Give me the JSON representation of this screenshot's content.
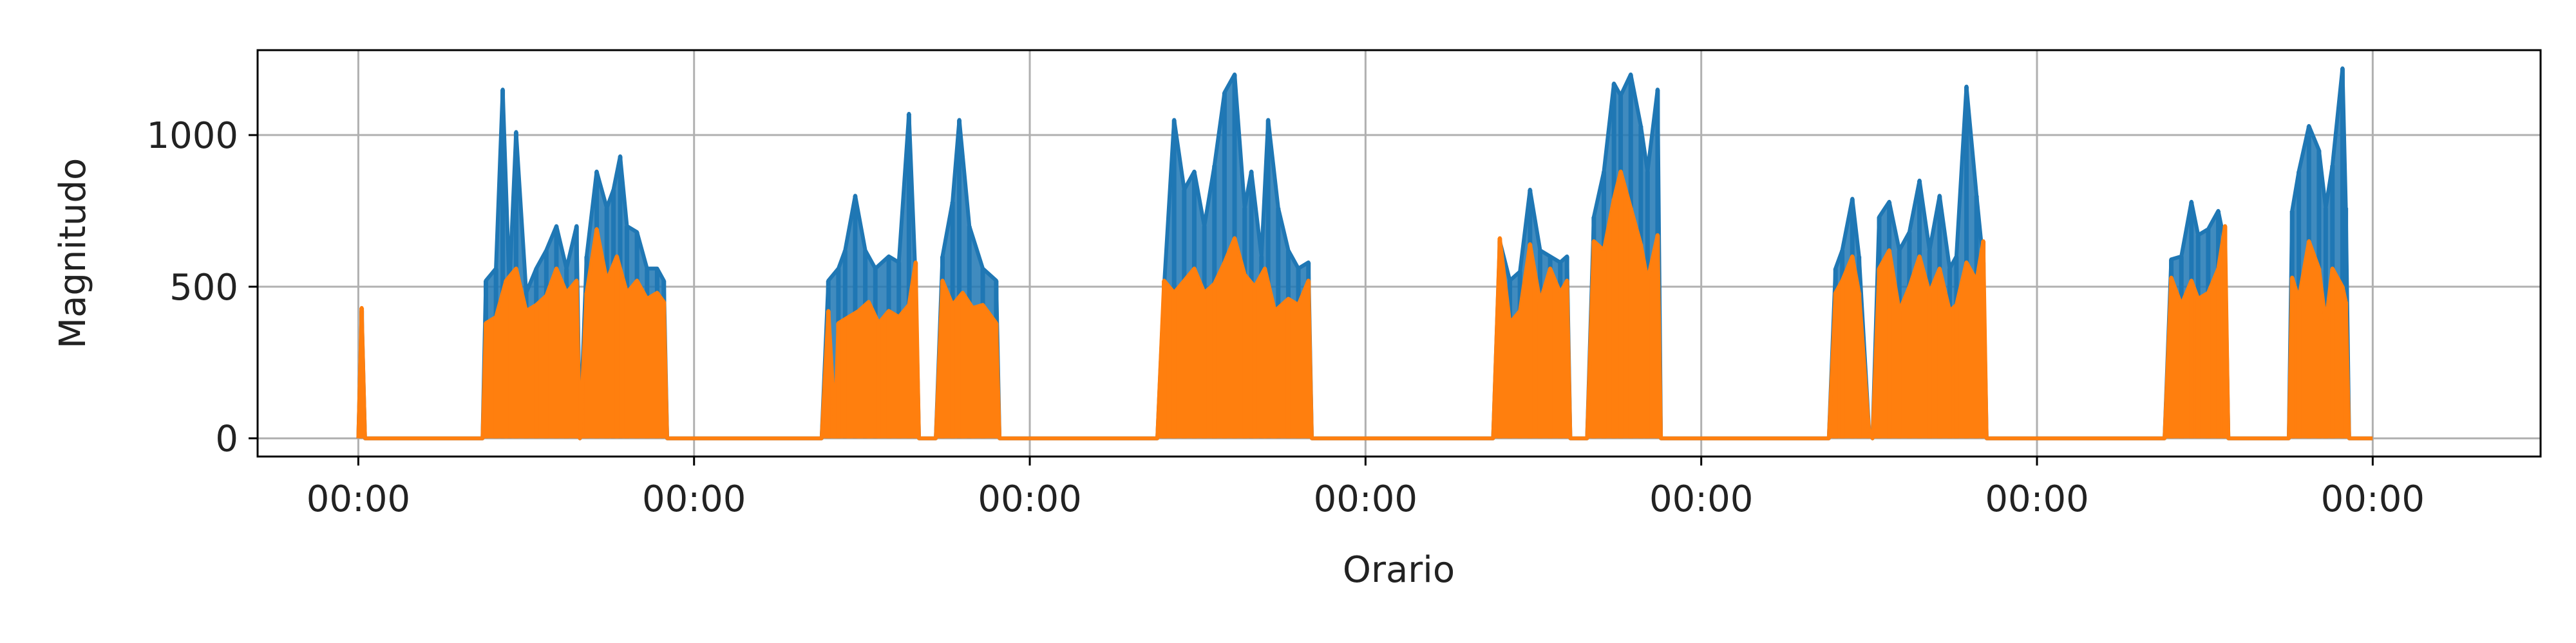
{
  "chart_data": {
    "type": "line",
    "title": "",
    "xlabel": "Orario",
    "ylabel": "Magnitudo",
    "x_tick_labels": [
      "00:00",
      "00:00",
      "00:00",
      "00:00",
      "00:00",
      "00:00",
      "00:00"
    ],
    "y_ticks": [
      0,
      500,
      1000
    ],
    "xlim": [
      -0.3,
      6.5
    ],
    "ylim": [
      -60,
      1280
    ],
    "grid": true,
    "legend": "none",
    "colors": {
      "series_a": "#1f77b4",
      "series_b": "#ff7f0e",
      "grid": "#b0b0b0",
      "axis": "#000000"
    },
    "series": [
      {
        "color": "#1f77b4",
        "points": [
          [
            0.0,
            0
          ],
          [
            0.01,
            420
          ],
          [
            0.02,
            0
          ],
          [
            0.37,
            0
          ],
          [
            0.38,
            520
          ],
          [
            0.41,
            560
          ],
          [
            0.43,
            1150
          ],
          [
            0.45,
            500
          ],
          [
            0.47,
            1010
          ],
          [
            0.5,
            480
          ],
          [
            0.53,
            560
          ],
          [
            0.56,
            620
          ],
          [
            0.59,
            700
          ],
          [
            0.62,
            560
          ],
          [
            0.65,
            700
          ],
          [
            0.66,
            0
          ],
          [
            0.68,
            600
          ],
          [
            0.71,
            880
          ],
          [
            0.74,
            760
          ],
          [
            0.76,
            820
          ],
          [
            0.78,
            930
          ],
          [
            0.8,
            700
          ],
          [
            0.83,
            680
          ],
          [
            0.86,
            560
          ],
          [
            0.89,
            560
          ],
          [
            0.91,
            520
          ],
          [
            0.92,
            0
          ],
          [
            1.38,
            0
          ],
          [
            1.4,
            520
          ],
          [
            1.43,
            560
          ],
          [
            1.45,
            620
          ],
          [
            1.48,
            800
          ],
          [
            1.51,
            620
          ],
          [
            1.54,
            560
          ],
          [
            1.58,
            600
          ],
          [
            1.61,
            580
          ],
          [
            1.64,
            1070
          ],
          [
            1.66,
            520
          ],
          [
            1.67,
            0
          ],
          [
            1.72,
            0
          ],
          [
            1.74,
            600
          ],
          [
            1.77,
            780
          ],
          [
            1.79,
            1050
          ],
          [
            1.82,
            700
          ],
          [
            1.86,
            560
          ],
          [
            1.9,
            520
          ],
          [
            1.91,
            0
          ],
          [
            2.38,
            0
          ],
          [
            2.4,
            500
          ],
          [
            2.43,
            1050
          ],
          [
            2.46,
            820
          ],
          [
            2.49,
            880
          ],
          [
            2.52,
            700
          ],
          [
            2.55,
            900
          ],
          [
            2.58,
            1140
          ],
          [
            2.61,
            1200
          ],
          [
            2.64,
            760
          ],
          [
            2.66,
            880
          ],
          [
            2.69,
            600
          ],
          [
            2.71,
            1050
          ],
          [
            2.74,
            760
          ],
          [
            2.77,
            620
          ],
          [
            2.8,
            560
          ],
          [
            2.83,
            580
          ],
          [
            2.84,
            0
          ],
          [
            3.38,
            0
          ],
          [
            3.4,
            650
          ],
          [
            3.43,
            520
          ],
          [
            3.46,
            550
          ],
          [
            3.49,
            820
          ],
          [
            3.52,
            620
          ],
          [
            3.55,
            600
          ],
          [
            3.58,
            580
          ],
          [
            3.6,
            600
          ],
          [
            3.61,
            0
          ],
          [
            3.66,
            0
          ],
          [
            3.68,
            730
          ],
          [
            3.71,
            880
          ],
          [
            3.74,
            1170
          ],
          [
            3.76,
            1130
          ],
          [
            3.79,
            1200
          ],
          [
            3.82,
            1030
          ],
          [
            3.84,
            880
          ],
          [
            3.87,
            1150
          ],
          [
            3.88,
            0
          ],
          [
            4.38,
            0
          ],
          [
            4.4,
            560
          ],
          [
            4.42,
            620
          ],
          [
            4.45,
            790
          ],
          [
            4.47,
            600
          ],
          [
            4.5,
            20
          ],
          [
            4.51,
            0
          ],
          [
            4.53,
            730
          ],
          [
            4.56,
            780
          ],
          [
            4.59,
            620
          ],
          [
            4.62,
            680
          ],
          [
            4.65,
            850
          ],
          [
            4.68,
            620
          ],
          [
            4.71,
            800
          ],
          [
            4.74,
            560
          ],
          [
            4.76,
            600
          ],
          [
            4.79,
            1160
          ],
          [
            4.82,
            800
          ],
          [
            4.84,
            580
          ],
          [
            4.85,
            0
          ],
          [
            5.38,
            0
          ],
          [
            5.4,
            590
          ],
          [
            5.43,
            600
          ],
          [
            5.46,
            780
          ],
          [
            5.48,
            670
          ],
          [
            5.51,
            690
          ],
          [
            5.54,
            750
          ],
          [
            5.56,
            640
          ],
          [
            5.57,
            0
          ],
          [
            5.75,
            0
          ],
          [
            5.76,
            750
          ],
          [
            5.78,
            880
          ],
          [
            5.81,
            1030
          ],
          [
            5.84,
            950
          ],
          [
            5.86,
            760
          ],
          [
            5.88,
            900
          ],
          [
            5.91,
            1220
          ],
          [
            5.92,
            760
          ],
          [
            5.93,
            0
          ],
          [
            6.0,
            0
          ]
        ]
      },
      {
        "color": "#ff7f0e",
        "points": [
          [
            0.0,
            0
          ],
          [
            0.01,
            430
          ],
          [
            0.02,
            0
          ],
          [
            0.37,
            0
          ],
          [
            0.38,
            380
          ],
          [
            0.41,
            400
          ],
          [
            0.44,
            520
          ],
          [
            0.47,
            560
          ],
          [
            0.5,
            420
          ],
          [
            0.53,
            440
          ],
          [
            0.56,
            470
          ],
          [
            0.59,
            560
          ],
          [
            0.62,
            480
          ],
          [
            0.65,
            520
          ],
          [
            0.66,
            0
          ],
          [
            0.68,
            480
          ],
          [
            0.71,
            690
          ],
          [
            0.74,
            520
          ],
          [
            0.77,
            600
          ],
          [
            0.8,
            480
          ],
          [
            0.83,
            520
          ],
          [
            0.86,
            460
          ],
          [
            0.89,
            480
          ],
          [
            0.91,
            450
          ],
          [
            0.92,
            0
          ],
          [
            1.38,
            0
          ],
          [
            1.4,
            420
          ],
          [
            1.42,
            40
          ],
          [
            1.43,
            380
          ],
          [
            1.46,
            400
          ],
          [
            1.49,
            420
          ],
          [
            1.52,
            450
          ],
          [
            1.55,
            380
          ],
          [
            1.58,
            420
          ],
          [
            1.61,
            400
          ],
          [
            1.64,
            440
          ],
          [
            1.66,
            580
          ],
          [
            1.67,
            0
          ],
          [
            1.72,
            0
          ],
          [
            1.74,
            520
          ],
          [
            1.77,
            440
          ],
          [
            1.8,
            480
          ],
          [
            1.83,
            430
          ],
          [
            1.86,
            440
          ],
          [
            1.9,
            380
          ],
          [
            1.91,
            0
          ],
          [
            2.38,
            0
          ],
          [
            2.4,
            520
          ],
          [
            2.43,
            480
          ],
          [
            2.46,
            520
          ],
          [
            2.49,
            560
          ],
          [
            2.52,
            480
          ],
          [
            2.55,
            510
          ],
          [
            2.58,
            580
          ],
          [
            2.61,
            660
          ],
          [
            2.64,
            540
          ],
          [
            2.67,
            500
          ],
          [
            2.7,
            560
          ],
          [
            2.73,
            420
          ],
          [
            2.77,
            460
          ],
          [
            2.8,
            440
          ],
          [
            2.83,
            520
          ],
          [
            2.84,
            0
          ],
          [
            3.38,
            0
          ],
          [
            3.4,
            660
          ],
          [
            3.43,
            380
          ],
          [
            3.46,
            420
          ],
          [
            3.49,
            640
          ],
          [
            3.52,
            450
          ],
          [
            3.55,
            560
          ],
          [
            3.58,
            480
          ],
          [
            3.6,
            520
          ],
          [
            3.61,
            0
          ],
          [
            3.66,
            0
          ],
          [
            3.68,
            650
          ],
          [
            3.71,
            620
          ],
          [
            3.74,
            790
          ],
          [
            3.76,
            880
          ],
          [
            3.79,
            760
          ],
          [
            3.82,
            640
          ],
          [
            3.84,
            520
          ],
          [
            3.87,
            670
          ],
          [
            3.88,
            0
          ],
          [
            4.38,
            0
          ],
          [
            4.4,
            480
          ],
          [
            4.42,
            520
          ],
          [
            4.45,
            600
          ],
          [
            4.47,
            480
          ],
          [
            4.5,
            20
          ],
          [
            4.51,
            0
          ],
          [
            4.53,
            560
          ],
          [
            4.56,
            620
          ],
          [
            4.59,
            420
          ],
          [
            4.62,
            500
          ],
          [
            4.65,
            600
          ],
          [
            4.68,
            480
          ],
          [
            4.71,
            560
          ],
          [
            4.74,
            420
          ],
          [
            4.76,
            440
          ],
          [
            4.79,
            580
          ],
          [
            4.82,
            520
          ],
          [
            4.84,
            650
          ],
          [
            4.85,
            0
          ],
          [
            5.38,
            0
          ],
          [
            5.4,
            530
          ],
          [
            5.43,
            440
          ],
          [
            5.46,
            520
          ],
          [
            5.48,
            460
          ],
          [
            5.51,
            480
          ],
          [
            5.54,
            560
          ],
          [
            5.56,
            700
          ],
          [
            5.57,
            0
          ],
          [
            5.75,
            0
          ],
          [
            5.76,
            530
          ],
          [
            5.78,
            460
          ],
          [
            5.81,
            650
          ],
          [
            5.84,
            560
          ],
          [
            5.86,
            380
          ],
          [
            5.88,
            560
          ],
          [
            5.91,
            500
          ],
          [
            5.92,
            450
          ],
          [
            5.93,
            0
          ],
          [
            6.0,
            0
          ]
        ]
      }
    ]
  }
}
